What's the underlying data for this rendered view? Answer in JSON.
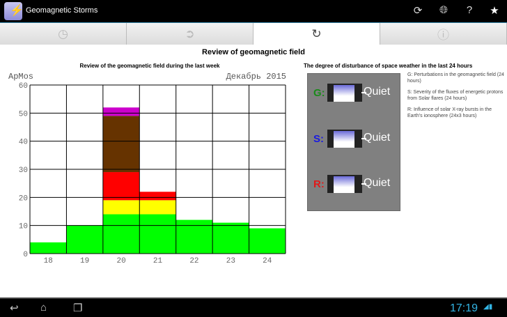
{
  "app": {
    "title": "Geomagnetic Storms",
    "icons": [
      "refresh-icon",
      "globe-icon",
      "help-icon",
      "star-icon"
    ]
  },
  "tabs": [
    {
      "icon": "clock-icon",
      "glyph": "◷",
      "active": false
    },
    {
      "icon": "arrow-right-circle-icon",
      "glyph": "➲",
      "active": false
    },
    {
      "icon": "rotate-icon",
      "glyph": "↻",
      "active": true
    },
    {
      "icon": "info-icon",
      "glyph": "ⓘ",
      "active": false
    }
  ],
  "main": {
    "title": "Review of geomagnetic field"
  },
  "chart_data": {
    "type": "bar",
    "title": "Review of the geomagnetic field during the last week",
    "ylabel": "ApMos",
    "period": "Декабрь 2015",
    "categories": [
      "18",
      "19",
      "20",
      "21",
      "22",
      "23",
      "24"
    ],
    "ylim": [
      0,
      60
    ],
    "yticks": [
      0,
      10,
      20,
      30,
      40,
      50,
      60
    ],
    "grid": true,
    "stacked": true,
    "series": [
      {
        "color": "#00ff00",
        "values": [
          4,
          10,
          14,
          14,
          12,
          11,
          9
        ]
      },
      {
        "color": "#ffff00",
        "values": [
          0,
          0,
          5,
          5,
          0,
          0,
          0
        ]
      },
      {
        "color": "#ff0000",
        "values": [
          0,
          0,
          10,
          3,
          0,
          0,
          0
        ]
      },
      {
        "color": "#663300",
        "values": [
          0,
          0,
          20,
          0,
          0,
          0,
          0
        ]
      },
      {
        "color": "#cc00cc",
        "values": [
          0,
          0,
          3,
          0,
          0,
          0,
          0
        ]
      }
    ]
  },
  "weather": {
    "title": "The degree of disturbance of space weather in the last 24 hours",
    "scales": [
      {
        "letter": "G:",
        "color": "#1a8a1a",
        "level": "Quiet"
      },
      {
        "letter": "S:",
        "color": "#1a1ae0",
        "level": "Quiet"
      },
      {
        "letter": "R:",
        "color": "#e01a1a",
        "level": "Quiet"
      }
    ],
    "notes": [
      "G: Perturbations in the geomagnetic field (24 hours)",
      "S: Severity of the fluxes of energetic protons from Solar flares (24 hours)",
      "R: Influence of solar X-ray bursts in the Earth's ionosphere (24x3 hours)"
    ]
  },
  "system": {
    "time": "17:19"
  }
}
